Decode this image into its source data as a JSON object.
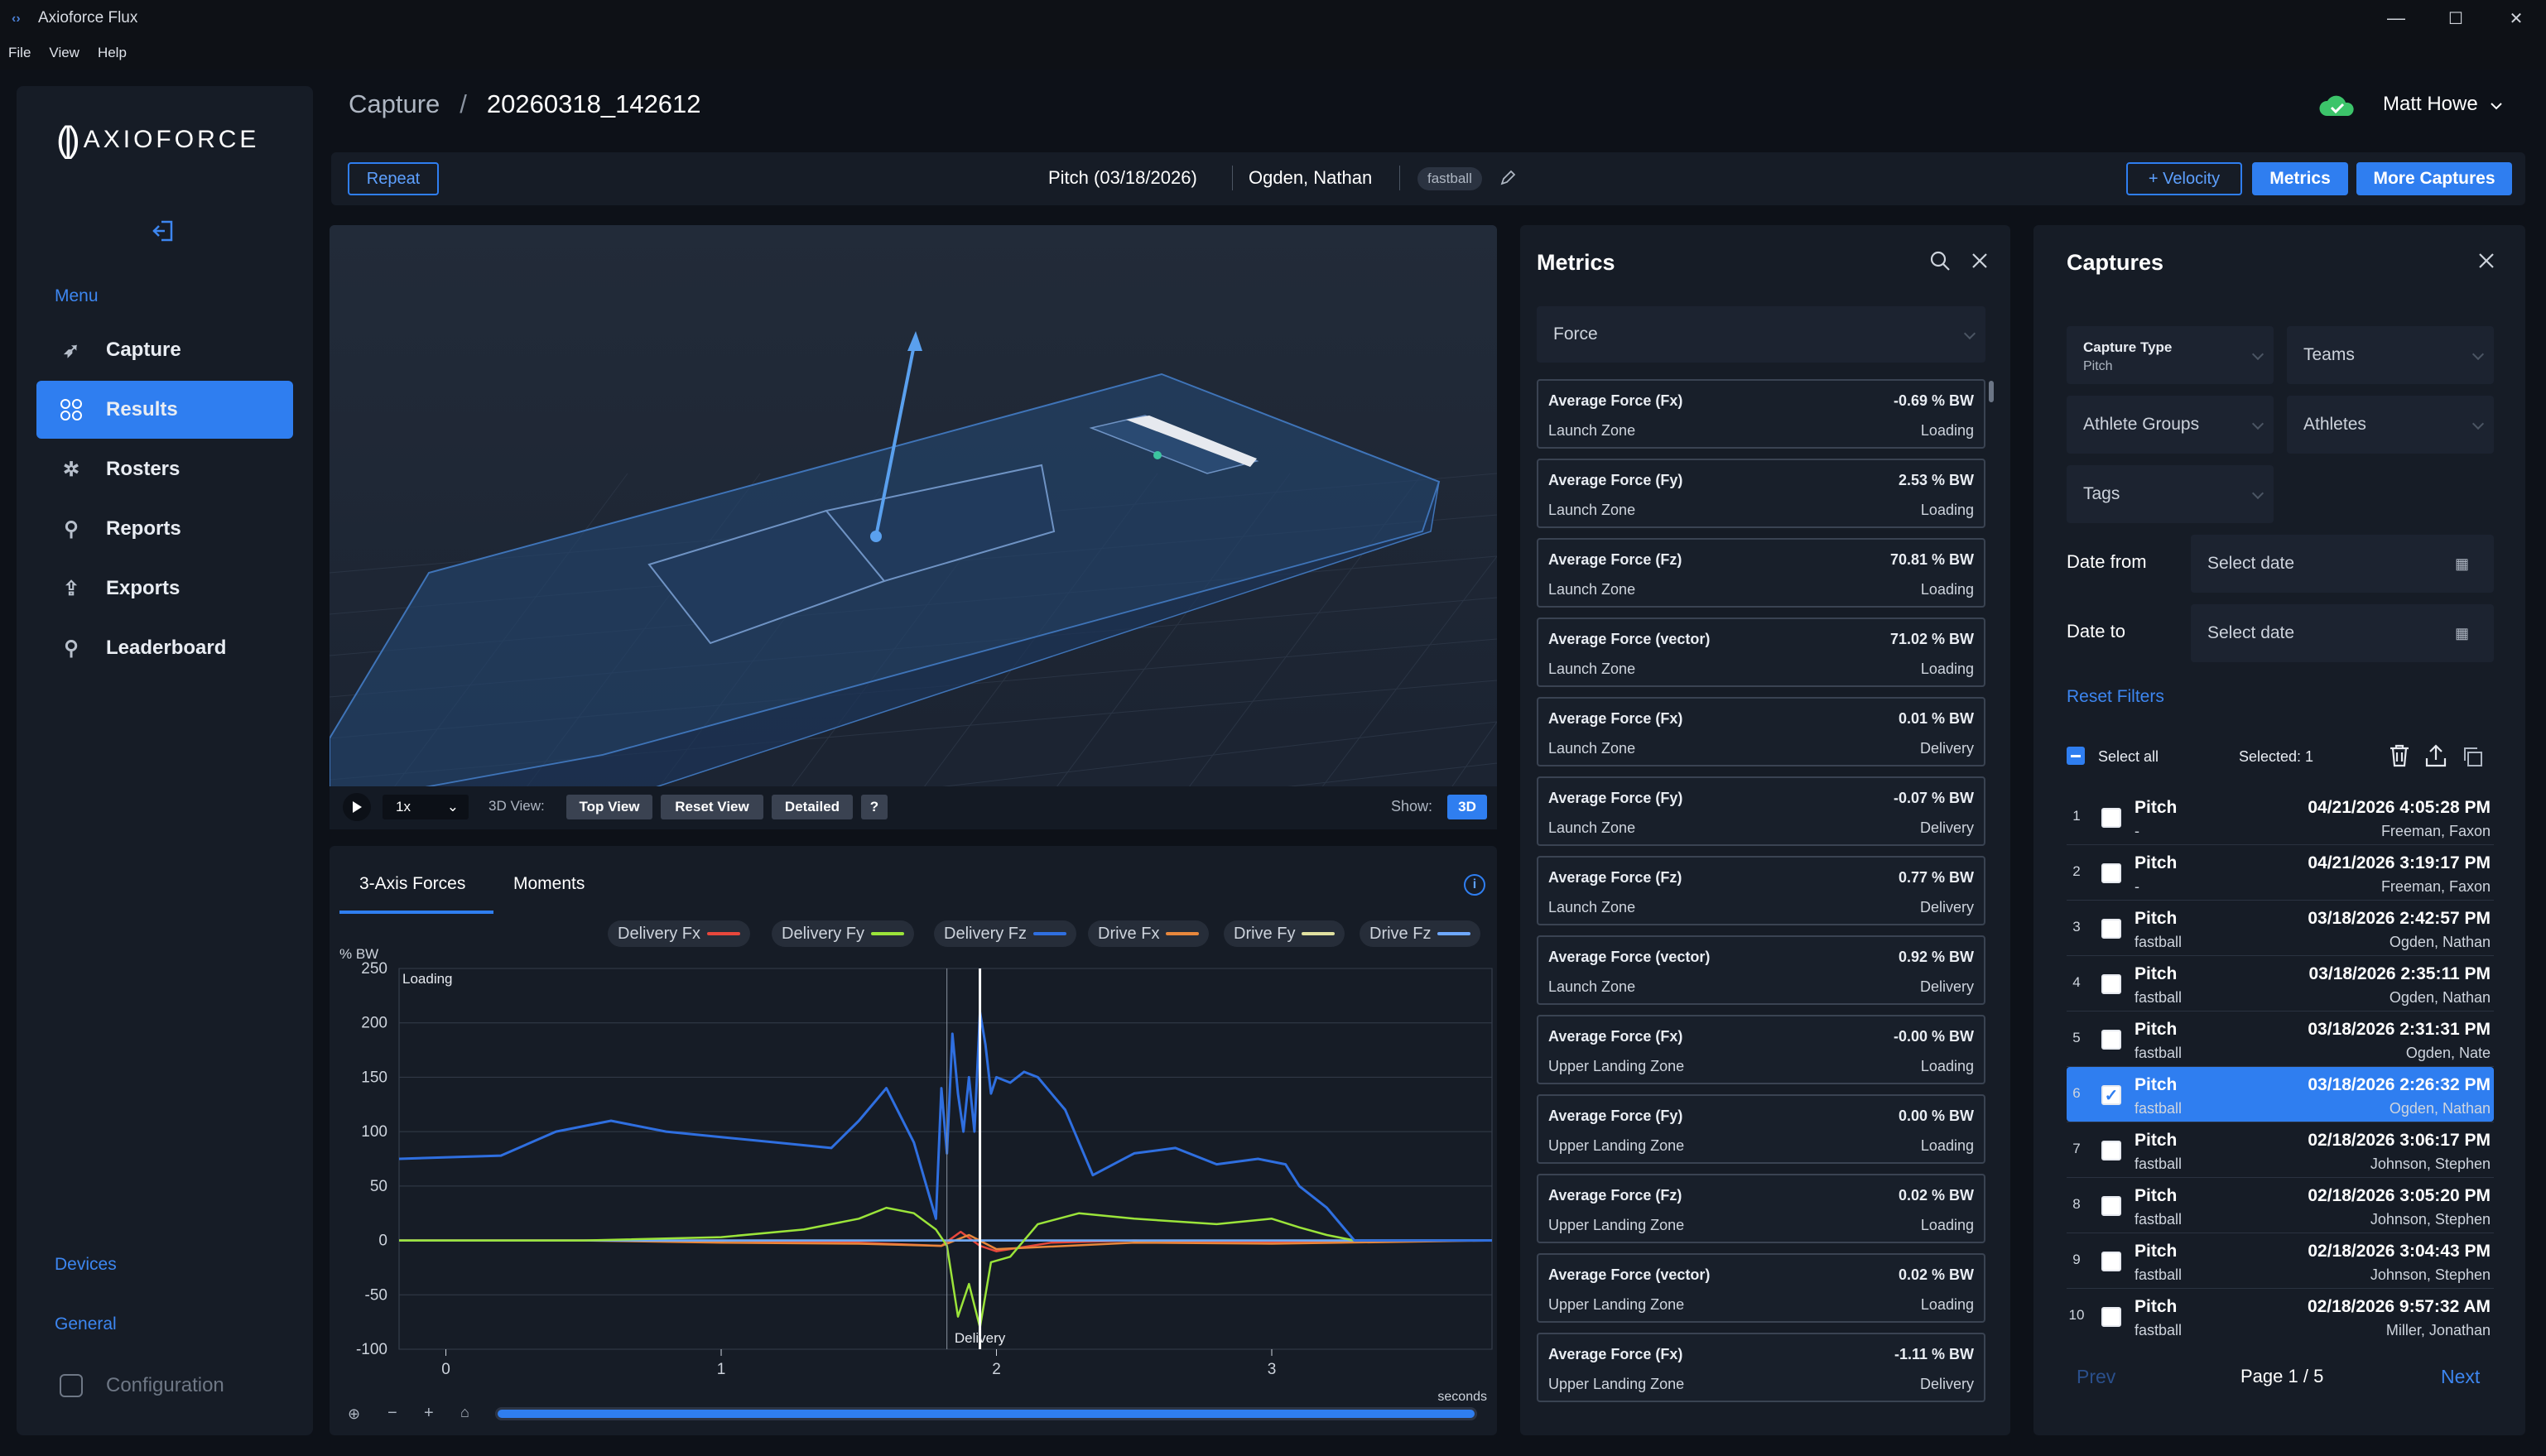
{
  "window": {
    "title": "Axioforce Flux",
    "minimize": "—",
    "maximize": "☐",
    "close": "✕"
  },
  "menubar": [
    "File",
    "View",
    "Help"
  ],
  "brand": {
    "mark": "(|)",
    "name": "AXIOFORCE"
  },
  "sidebar": {
    "menu_label": "Menu",
    "items": [
      {
        "label": "Capture",
        "icon": "rocket-icon"
      },
      {
        "label": "Results",
        "icon": "grid-icon"
      },
      {
        "label": "Rosters",
        "icon": "team-icon"
      },
      {
        "label": "Reports",
        "icon": "medal-icon"
      },
      {
        "label": "Exports",
        "icon": "export-icon"
      },
      {
        "label": "Leaderboard",
        "icon": "trophy-icon"
      }
    ],
    "active": "Results",
    "devices": "Devices",
    "general": "General",
    "configuration": "Configuration"
  },
  "breadcrumb": {
    "root": "Capture",
    "sep": "/",
    "current": "20260318_142612"
  },
  "user": {
    "name": "Matt Howe",
    "cloud_status_color": "#3cc46a"
  },
  "toolbar": {
    "repeat": "Repeat",
    "pitch": "Pitch (03/18/2026)",
    "athlete": "Ogden, Nathan",
    "tag": "fastball",
    "velocity": "+ Velocity",
    "metrics": "Metrics",
    "more": "More Captures"
  },
  "viewer": {
    "speed": "1x",
    "view_label": "3D View:",
    "top_view": "Top View",
    "reset_view": "Reset View",
    "detailed": "Detailed",
    "help": "?",
    "show_label": "Show:",
    "show_mode": "3D"
  },
  "chart_tabs": [
    "3-Axis Forces",
    "Moments"
  ],
  "chart_data": {
    "type": "line",
    "ylabel": "% BW",
    "xlabel": "seconds",
    "ylim": [
      -100,
      250
    ],
    "xlim": [
      -0.17,
      3.8
    ],
    "yticks": [
      250,
      200,
      150,
      100,
      50,
      0,
      -50,
      -100
    ],
    "xticks": [
      0,
      1,
      2,
      3
    ],
    "annotations": [
      {
        "text": "Loading",
        "x": -0.17
      },
      {
        "text": "Delivery",
        "x": 1.94
      }
    ],
    "markers": [
      1.82,
      1.94
    ],
    "series": [
      {
        "name": "Delivery Fx",
        "color": "#e8473c",
        "x": [
          -0.17,
          0.5,
          1.0,
          1.5,
          1.8,
          1.87,
          1.94,
          2.0,
          2.2,
          2.5,
          3.0,
          3.3,
          3.8
        ],
        "y": [
          0,
          0,
          0,
          -2,
          -5,
          8,
          -5,
          -10,
          -2,
          0,
          -2,
          0,
          0
        ]
      },
      {
        "name": "Delivery Fy",
        "color": "#9be43a",
        "x": [
          -0.17,
          0.5,
          1.0,
          1.3,
          1.5,
          1.6,
          1.7,
          1.78,
          1.82,
          1.86,
          1.9,
          1.94,
          1.98,
          2.05,
          2.15,
          2.3,
          2.5,
          2.8,
          3.0,
          3.1,
          3.2,
          3.3,
          3.8
        ],
        "y": [
          0,
          0,
          3,
          10,
          20,
          30,
          25,
          10,
          -5,
          -70,
          -40,
          -80,
          -20,
          -15,
          15,
          25,
          20,
          15,
          20,
          12,
          5,
          0,
          0
        ]
      },
      {
        "name": "Delivery Fz",
        "color": "#2f6fe0",
        "x": [
          -0.17,
          0.2,
          0.4,
          0.6,
          0.8,
          1.0,
          1.2,
          1.4,
          1.5,
          1.6,
          1.7,
          1.78,
          1.8,
          1.82,
          1.84,
          1.86,
          1.88,
          1.9,
          1.92,
          1.94,
          1.96,
          1.98,
          2.0,
          2.05,
          2.1,
          2.15,
          2.25,
          2.35,
          2.5,
          2.65,
          2.8,
          2.95,
          3.05,
          3.1,
          3.2,
          3.3,
          3.8
        ],
        "y": [
          75,
          78,
          100,
          110,
          100,
          95,
          90,
          85,
          110,
          140,
          90,
          20,
          140,
          80,
          190,
          135,
          100,
          150,
          100,
          210,
          180,
          135,
          150,
          145,
          155,
          150,
          120,
          60,
          80,
          85,
          70,
          75,
          70,
          50,
          30,
          0,
          0
        ]
      },
      {
        "name": "Drive Fx",
        "color": "#e8873c",
        "x": [
          -0.17,
          0.5,
          1.0,
          1.5,
          1.8,
          1.9,
          2.0,
          2.5,
          3.0,
          3.8
        ],
        "y": [
          0,
          0,
          -2,
          -3,
          -5,
          5,
          -8,
          -2,
          -3,
          0
        ]
      },
      {
        "name": "Drive Fy",
        "color": "#e0e0a0",
        "x": [
          -0.17,
          1.0,
          2.0,
          3.0,
          3.8
        ],
        "y": [
          0,
          0,
          0,
          0,
          0
        ]
      },
      {
        "name": "Drive Fz",
        "color": "#6ea8ff",
        "x": [
          -0.17,
          1.0,
          2.0,
          3.0,
          3.8
        ],
        "y": [
          0,
          0,
          0,
          0,
          0
        ]
      }
    ]
  },
  "metrics_panel": {
    "title": "Metrics",
    "select": "Force",
    "cards": [
      {
        "name": "Average Force (Fx)",
        "value": "-0.69 % BW",
        "zone": "Launch Zone",
        "phase": "Loading"
      },
      {
        "name": "Average Force (Fy)",
        "value": "2.53 % BW",
        "zone": "Launch Zone",
        "phase": "Loading"
      },
      {
        "name": "Average Force (Fz)",
        "value": "70.81 % BW",
        "zone": "Launch Zone",
        "phase": "Loading"
      },
      {
        "name": "Average Force (vector)",
        "value": "71.02 % BW",
        "zone": "Launch Zone",
        "phase": "Loading"
      },
      {
        "name": "Average Force (Fx)",
        "value": "0.01 % BW",
        "zone": "Launch Zone",
        "phase": "Delivery"
      },
      {
        "name": "Average Force (Fy)",
        "value": "-0.07 % BW",
        "zone": "Launch Zone",
        "phase": "Delivery"
      },
      {
        "name": "Average Force (Fz)",
        "value": "0.77 % BW",
        "zone": "Launch Zone",
        "phase": "Delivery"
      },
      {
        "name": "Average Force (vector)",
        "value": "0.92 % BW",
        "zone": "Launch Zone",
        "phase": "Delivery"
      },
      {
        "name": "Average Force (Fx)",
        "value": "-0.00 % BW",
        "zone": "Upper Landing Zone",
        "phase": "Loading"
      },
      {
        "name": "Average Force (Fy)",
        "value": "0.00 % BW",
        "zone": "Upper Landing Zone",
        "phase": "Loading"
      },
      {
        "name": "Average Force (Fz)",
        "value": "0.02 % BW",
        "zone": "Upper Landing Zone",
        "phase": "Loading"
      },
      {
        "name": "Average Force (vector)",
        "value": "0.02 % BW",
        "zone": "Upper Landing Zone",
        "phase": "Loading"
      },
      {
        "name": "Average Force (Fx)",
        "value": "-1.11 % BW",
        "zone": "Upper Landing Zone",
        "phase": "Delivery"
      }
    ]
  },
  "captures_panel": {
    "title": "Captures",
    "capture_type_label": "Capture Type",
    "capture_type_value": "Pitch",
    "teams": "Teams",
    "athlete_groups": "Athlete Groups",
    "athletes": "Athletes",
    "tags": "Tags",
    "date_from": "Date from",
    "date_to": "Date to",
    "date_placeholder": "Select date",
    "reset_filters": "Reset Filters",
    "select_all": "Select all",
    "selected": "Selected: 1",
    "rows": [
      {
        "n": "1",
        "type": "Pitch",
        "tag": "-",
        "date": "04/21/2026 4:05:28 PM",
        "athlete": "Freeman, Faxon",
        "checked": false
      },
      {
        "n": "2",
        "type": "Pitch",
        "tag": "-",
        "date": "04/21/2026 3:19:17 PM",
        "athlete": "Freeman, Faxon",
        "checked": false
      },
      {
        "n": "3",
        "type": "Pitch",
        "tag": "fastball",
        "date": "03/18/2026 2:42:57 PM",
        "athlete": "Ogden, Nathan",
        "checked": false
      },
      {
        "n": "4",
        "type": "Pitch",
        "tag": "fastball",
        "date": "03/18/2026 2:35:11 PM",
        "athlete": "Ogden, Nathan",
        "checked": false
      },
      {
        "n": "5",
        "type": "Pitch",
        "tag": "fastball",
        "date": "03/18/2026 2:31:31 PM",
        "athlete": "Ogden, Nate",
        "checked": false
      },
      {
        "n": "6",
        "type": "Pitch",
        "tag": "fastball",
        "date": "03/18/2026 2:26:32 PM",
        "athlete": "Ogden, Nathan",
        "checked": true
      },
      {
        "n": "7",
        "type": "Pitch",
        "tag": "fastball",
        "date": "02/18/2026 3:06:17 PM",
        "athlete": "Johnson, Stephen",
        "checked": false
      },
      {
        "n": "8",
        "type": "Pitch",
        "tag": "fastball",
        "date": "02/18/2026 3:05:20 PM",
        "athlete": "Johnson, Stephen",
        "checked": false
      },
      {
        "n": "9",
        "type": "Pitch",
        "tag": "fastball",
        "date": "02/18/2026 3:04:43 PM",
        "athlete": "Johnson, Stephen",
        "checked": false
      },
      {
        "n": "10",
        "type": "Pitch",
        "tag": "fastball",
        "date": "02/18/2026 9:57:32 AM",
        "athlete": "Miller, Jonathan",
        "checked": false
      }
    ],
    "prev": "Prev",
    "page": "Page 1 / 5",
    "next": "Next"
  }
}
